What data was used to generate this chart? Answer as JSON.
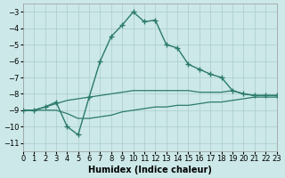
{
  "xlabel": "Humidex (Indice chaleur)",
  "background_color": "#cce8e8",
  "grid_color": "#aacccc",
  "line_color": "#2a7a6a",
  "xlim": [
    0,
    23
  ],
  "ylim": [
    -11.5,
    -2.5
  ],
  "yticks": [
    -11,
    -10,
    -9,
    -8,
    -7,
    -6,
    -5,
    -4,
    -3
  ],
  "xticks": [
    0,
    1,
    2,
    3,
    4,
    5,
    6,
    7,
    8,
    9,
    10,
    11,
    12,
    13,
    14,
    15,
    16,
    17,
    18,
    19,
    20,
    21,
    22,
    23
  ],
  "curve_x": [
    0,
    1,
    2,
    3,
    4,
    5,
    6,
    7,
    8,
    9,
    10,
    11,
    12,
    13,
    14,
    15,
    16,
    17,
    18,
    19,
    20,
    21,
    22,
    23
  ],
  "curve_y": [
    -9.0,
    -9.0,
    -8.8,
    -8.5,
    -10.0,
    -10.5,
    -8.2,
    -6.0,
    -4.5,
    -3.8,
    -3.0,
    -3.6,
    -3.5,
    -5.0,
    -5.2,
    -6.2,
    -6.5,
    -6.8,
    -7.0,
    -7.8,
    -8.0,
    -8.1,
    -8.1,
    -8.1
  ],
  "upper_x": [
    0,
    1,
    2,
    3,
    4,
    5,
    6,
    7,
    8,
    9,
    10,
    11,
    12,
    13,
    14,
    15,
    16,
    17,
    18,
    19,
    20,
    21,
    22,
    23
  ],
  "upper_y": [
    -9.0,
    -9.0,
    -8.8,
    -8.6,
    -8.4,
    -8.3,
    -8.2,
    -8.1,
    -8.0,
    -7.9,
    -7.8,
    -7.8,
    -7.8,
    -7.8,
    -7.8,
    -7.8,
    -7.9,
    -7.9,
    -7.9,
    -7.8,
    -8.0,
    -8.1,
    -8.1,
    -8.1
  ],
  "lower_x": [
    0,
    1,
    2,
    3,
    4,
    5,
    6,
    7,
    8,
    9,
    10,
    11,
    12,
    13,
    14,
    15,
    16,
    17,
    18,
    19,
    20,
    21,
    22,
    23
  ],
  "lower_y": [
    -9.0,
    -9.0,
    -9.0,
    -9.0,
    -9.2,
    -9.5,
    -9.5,
    -9.4,
    -9.3,
    -9.1,
    -9.0,
    -8.9,
    -8.8,
    -8.8,
    -8.7,
    -8.7,
    -8.6,
    -8.5,
    -8.5,
    -8.4,
    -8.3,
    -8.2,
    -8.2,
    -8.2
  ]
}
